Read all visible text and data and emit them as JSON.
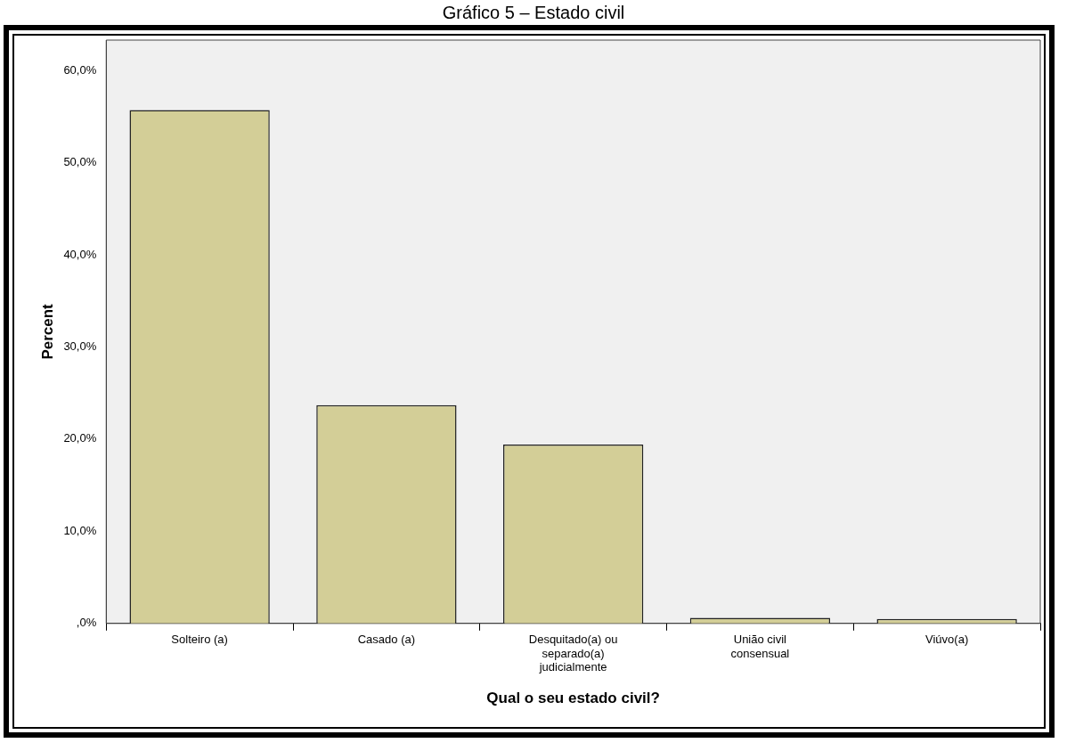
{
  "chart_data": {
    "type": "bar",
    "title": "Gráfico 5 – Estado civil",
    "xlabel": "Qual o seu estado civil?",
    "ylabel": "Percent",
    "categories": [
      "Solteiro (a)",
      "Casado (a)",
      "Desquitado(a) ou separado(a) judicialmente",
      "União civil consensual",
      "Viúvo(a)"
    ],
    "values": [
      55.7,
      23.7,
      19.4,
      0.6,
      0.5
    ],
    "color": "#d3ce97",
    "ylim": [
      0,
      63.3
    ],
    "yticks": [
      {
        "value": 0,
        "label": ",0%"
      },
      {
        "value": 10,
        "label": "10,0%"
      },
      {
        "value": 20,
        "label": "20,0%"
      },
      {
        "value": 30,
        "label": "30,0%"
      },
      {
        "value": 40,
        "label": "40,0%"
      },
      {
        "value": 50,
        "label": "50,0%"
      },
      {
        "value": 60,
        "label": "60,0%"
      }
    ],
    "grid": false,
    "legend": false
  }
}
